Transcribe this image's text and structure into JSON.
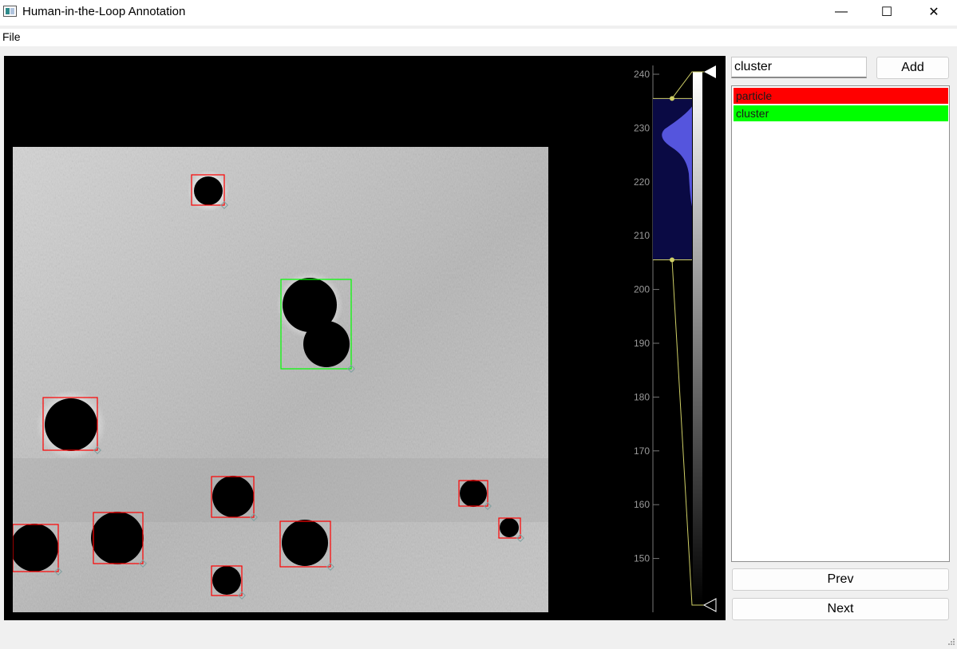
{
  "window": {
    "title": "Human-in-the-Loop Annotation",
    "minimize": "—",
    "maximize": "☐",
    "close": "✕"
  },
  "menu": {
    "file": "File"
  },
  "class_input": {
    "value": "cluster"
  },
  "buttons": {
    "add": "Add",
    "prev": "Prev",
    "next": "Next"
  },
  "classes": [
    {
      "label": "particle",
      "color": "#ff0000"
    },
    {
      "label": "cluster",
      "color": "#00ff00"
    }
  ],
  "histogram": {
    "axis_ticks": [
      "240",
      "230",
      "220",
      "210",
      "200",
      "190",
      "180",
      "170",
      "160",
      "150"
    ],
    "region_min": 205.5,
    "region_max": 235.5,
    "fill_color": "#5555dd",
    "region_color": "#0a0a44"
  },
  "annotations": [
    {
      "class": "particle",
      "color": "#ff0000"
    },
    {
      "class": "cluster",
      "color": "#00ff00"
    }
  ]
}
